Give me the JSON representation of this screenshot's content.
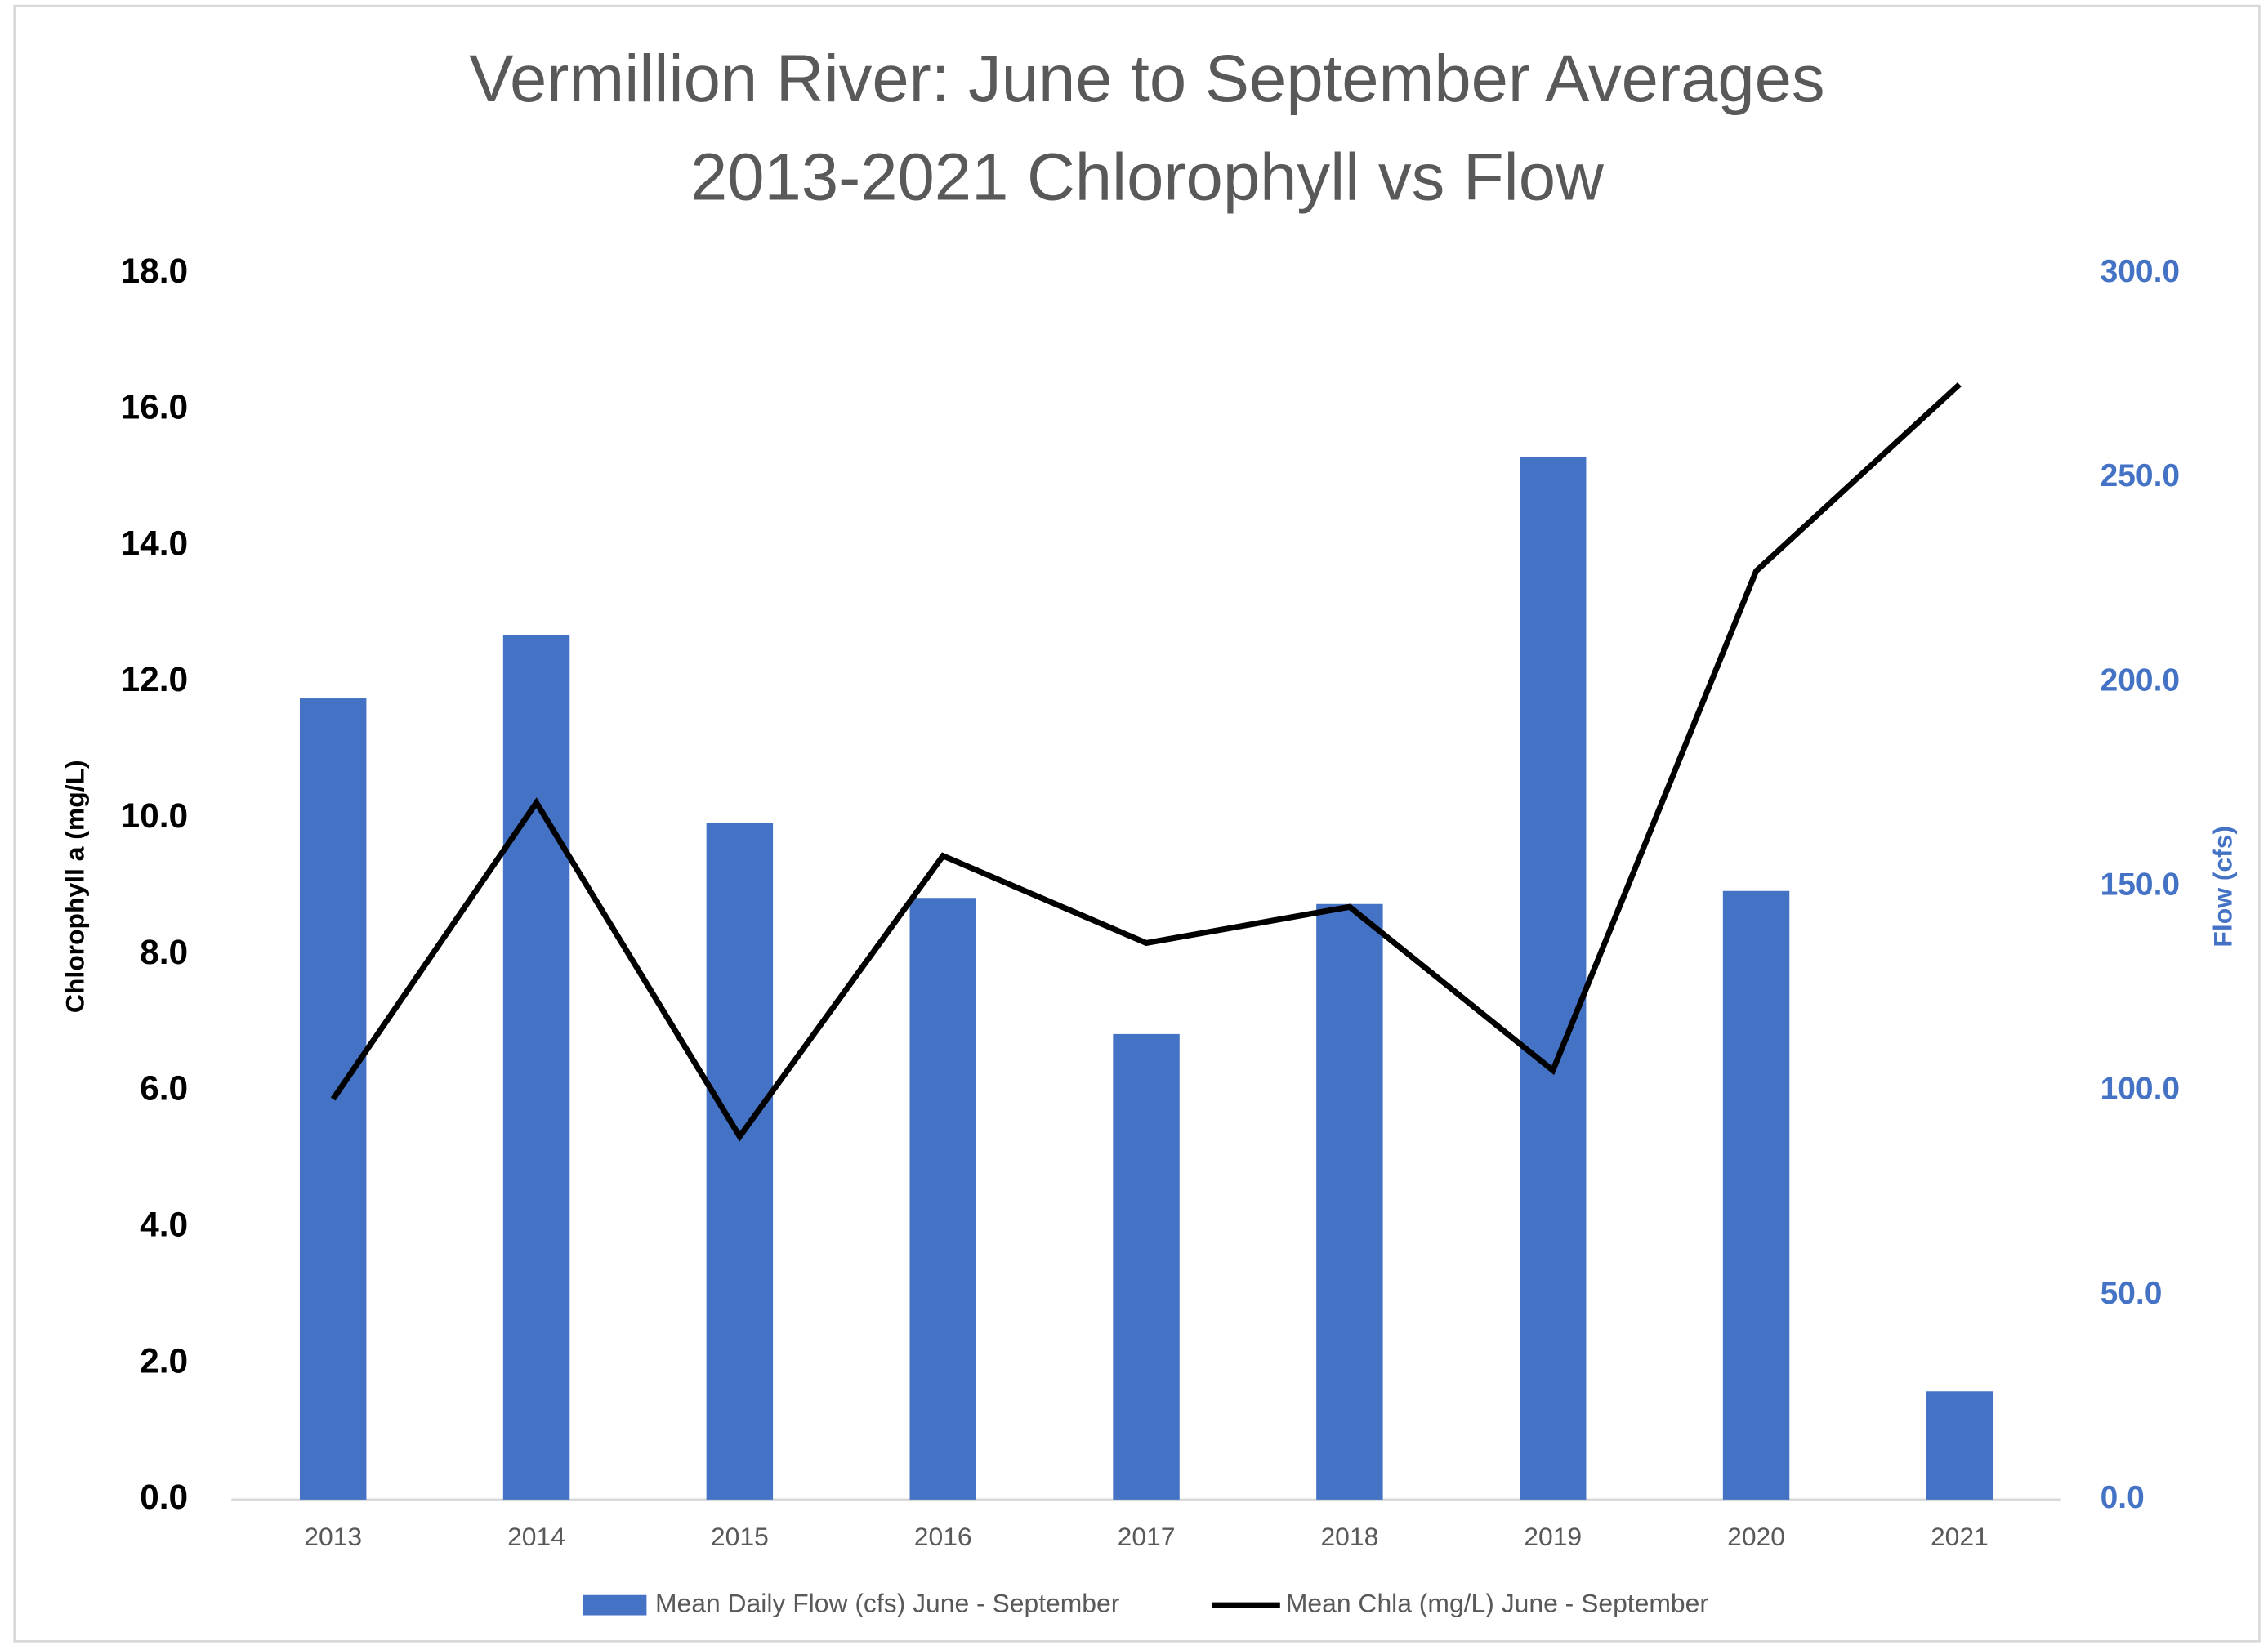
{
  "chart_data": {
    "type": "combo",
    "title": "Vermillion River: June to September Averages",
    "subtitle": "2013-2021 Chlorophyll vs  Flow",
    "ylabel": "Chlorophyll a (mg/L)",
    "y2label": "Flow (cfs)",
    "categories": [
      "2013",
      "2014",
      "2015",
      "2016",
      "2017",
      "2018",
      "2019",
      "2020",
      "2021"
    ],
    "series": [
      {
        "name": "Mean Daily Flow (cfs) June - September",
        "type": "bar",
        "axis": "y2",
        "color": "#4472c4",
        "values": [
          196.0,
          211.5,
          165.5,
          147.2,
          113.9,
          145.7,
          255.0,
          148.9,
          26.5
        ]
      },
      {
        "name": "Mean Chla (mg/L) June - September",
        "type": "line",
        "axis": "y",
        "color": "#000000",
        "values": [
          5.88,
          10.23,
          5.33,
          9.45,
          8.17,
          8.7,
          6.3,
          13.63,
          16.37
        ]
      }
    ],
    "ylim": [
      0,
      18
    ],
    "yticks": [
      {
        "value": 0,
        "label": "0.0"
      },
      {
        "value": 2,
        "label": "2.0"
      },
      {
        "value": 4,
        "label": "4.0"
      },
      {
        "value": 6,
        "label": "6.0"
      },
      {
        "value": 8,
        "label": "8.0"
      },
      {
        "value": 10,
        "label": "10.0"
      },
      {
        "value": 12,
        "label": "12.0"
      },
      {
        "value": 14,
        "label": "14.0"
      },
      {
        "value": 16,
        "label": "16.0"
      },
      {
        "value": 18,
        "label": "18.0"
      }
    ],
    "y2lim": [
      0,
      300
    ],
    "y2ticks": [
      {
        "value": 0,
        "label": "0.0"
      },
      {
        "value": 50,
        "label": "50.0"
      },
      {
        "value": 100,
        "label": "100.0"
      },
      {
        "value": 150,
        "label": "150.0"
      },
      {
        "value": 200,
        "label": "200.0"
      },
      {
        "value": 250,
        "label": "250.0"
      },
      {
        "value": 300,
        "label": "300.0"
      }
    ],
    "y2color": "#4472c4",
    "legend": "bottom",
    "grid": false
  }
}
